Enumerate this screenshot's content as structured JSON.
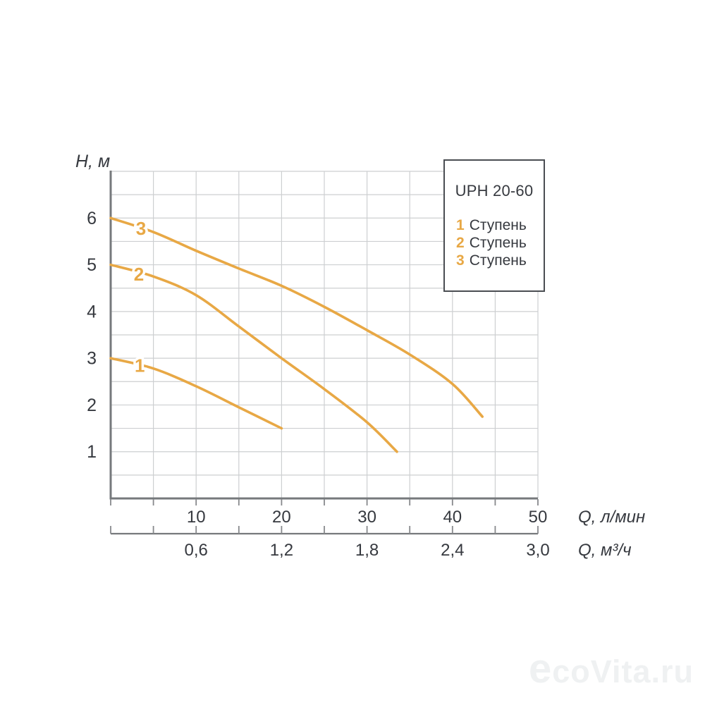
{
  "colors": {
    "curve": "#E8A845",
    "axis": "#76797C",
    "tick": "#87898C",
    "grid": "#CDCFD1",
    "text": "#36393F",
    "legend_border": "#4A4D52",
    "watermark": "#EFF1F2"
  },
  "watermark": {
    "text": "ecoVita.ru"
  },
  "chart_data": {
    "type": "line",
    "title": "UPH 20-60",
    "ylabel": "H, м",
    "xlabel_primary": "Q, л/мин",
    "xlabel_secondary": "Q, м³/ч",
    "xlim": [
      0,
      50
    ],
    "ylim": [
      0,
      7
    ],
    "x_minor_step": 5,
    "x_major_ticks": [
      10,
      20,
      30,
      40,
      50
    ],
    "y_grid_step": 0.5,
    "y_tick_labels": [
      1,
      2,
      3,
      4,
      5,
      6
    ],
    "secondary_x_tick_labels": [
      "0,6",
      "1,2",
      "1,8",
      "2,4",
      "3,0"
    ],
    "legend": {
      "title": "UPH 20-60",
      "items": [
        {
          "number": "1",
          "label": "Ступень"
        },
        {
          "number": "2",
          "label": "Ступень"
        },
        {
          "number": "3",
          "label": "Ступень"
        }
      ]
    },
    "series": [
      {
        "name": "1 Ступень",
        "curve_label": "1",
        "label_pos": [
          3.4,
          2.84
        ],
        "points": [
          [
            0,
            3.0
          ],
          [
            5,
            2.78
          ],
          [
            10,
            2.4
          ],
          [
            15,
            1.95
          ],
          [
            20,
            1.5
          ]
        ]
      },
      {
        "name": "2 Ступень",
        "curve_label": "2",
        "label_pos": [
          3.3,
          4.8
        ],
        "points": [
          [
            0,
            5.0
          ],
          [
            5,
            4.75
          ],
          [
            10,
            4.35
          ],
          [
            15,
            3.68
          ],
          [
            20,
            3.0
          ],
          [
            25,
            2.34
          ],
          [
            30,
            1.63
          ],
          [
            33.5,
            1.0
          ]
        ]
      },
      {
        "name": "3 Ступень",
        "curve_label": "3",
        "label_pos": [
          3.55,
          5.78
        ],
        "points": [
          [
            0,
            6.0
          ],
          [
            5,
            5.7
          ],
          [
            10,
            5.3
          ],
          [
            15,
            4.92
          ],
          [
            20,
            4.55
          ],
          [
            25,
            4.1
          ],
          [
            30,
            3.6
          ],
          [
            35,
            3.08
          ],
          [
            40,
            2.45
          ],
          [
            43.5,
            1.75
          ]
        ]
      }
    ]
  }
}
